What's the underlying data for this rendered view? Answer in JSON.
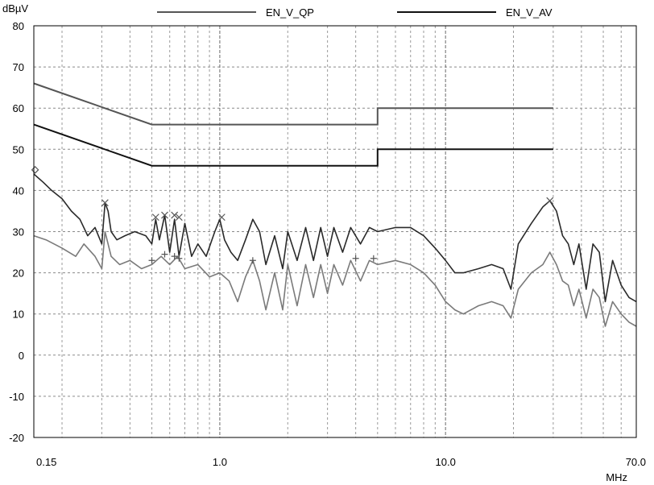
{
  "chart_data": {
    "type": "line",
    "ylabel": "dBµV",
    "xlabel": "MHz",
    "x_scale": "log",
    "xlim": [
      0.15,
      70.0
    ],
    "ylim": [
      -20,
      80
    ],
    "yticks": [
      80,
      70,
      60,
      50,
      40,
      30,
      20,
      10,
      0,
      -10,
      -20
    ],
    "ytick_labels": [
      "80",
      "70",
      "60",
      "50",
      "40",
      "30",
      "20",
      "10",
      "0",
      "-10",
      "-20"
    ],
    "xtick_values": [
      0.15,
      1.0,
      10.0,
      70.0
    ],
    "xtick_labels": [
      "0.15",
      "1.0",
      "10.0",
      "70.0"
    ],
    "grid": true,
    "legend": [
      {
        "name": "EN_V_QP",
        "color": "#555555"
      },
      {
        "name": "EN_V_AV",
        "color": "#111111"
      }
    ],
    "limit_lines": [
      {
        "name": "EN_V_QP",
        "color": "#555555",
        "points": [
          [
            0.15,
            66
          ],
          [
            0.5,
            56
          ],
          [
            5.0,
            56
          ],
          [
            5.0,
            60
          ],
          [
            30.0,
            60
          ]
        ]
      },
      {
        "name": "EN_V_AV",
        "color": "#111111",
        "points": [
          [
            0.15,
            56
          ],
          [
            0.5,
            46
          ],
          [
            5.0,
            46
          ],
          [
            5.0,
            50
          ],
          [
            30.0,
            50
          ]
        ]
      }
    ],
    "traces": [
      {
        "color": "#2a2a2a",
        "points": [
          [
            0.15,
            44
          ],
          [
            0.165,
            42
          ],
          [
            0.18,
            40
          ],
          [
            0.2,
            38
          ],
          [
            0.22,
            35
          ],
          [
            0.24,
            33
          ],
          [
            0.26,
            29
          ],
          [
            0.28,
            31
          ],
          [
            0.3,
            27
          ],
          [
            0.31,
            37
          ],
          [
            0.32,
            35
          ],
          [
            0.33,
            30
          ],
          [
            0.35,
            28
          ],
          [
            0.38,
            29
          ],
          [
            0.42,
            30
          ],
          [
            0.47,
            29
          ],
          [
            0.5,
            27
          ],
          [
            0.52,
            33
          ],
          [
            0.54,
            28
          ],
          [
            0.57,
            34
          ],
          [
            0.6,
            25
          ],
          [
            0.63,
            33
          ],
          [
            0.66,
            24
          ],
          [
            0.7,
            32
          ],
          [
            0.75,
            24
          ],
          [
            0.8,
            27
          ],
          [
            0.87,
            24
          ],
          [
            0.95,
            30
          ],
          [
            1.0,
            33
          ],
          [
            1.05,
            28
          ],
          [
            1.12,
            25
          ],
          [
            1.2,
            23
          ],
          [
            1.3,
            28
          ],
          [
            1.4,
            33
          ],
          [
            1.5,
            30
          ],
          [
            1.6,
            22
          ],
          [
            1.75,
            29
          ],
          [
            1.9,
            21
          ],
          [
            2.0,
            30
          ],
          [
            2.2,
            23
          ],
          [
            2.4,
            31
          ],
          [
            2.6,
            23
          ],
          [
            2.8,
            31
          ],
          [
            3.0,
            24
          ],
          [
            3.2,
            31
          ],
          [
            3.5,
            25
          ],
          [
            3.8,
            31
          ],
          [
            4.2,
            27
          ],
          [
            4.6,
            31
          ],
          [
            5.0,
            30
          ],
          [
            6.0,
            31
          ],
          [
            7.0,
            31
          ],
          [
            8.0,
            29
          ],
          [
            9.0,
            26
          ],
          [
            10.0,
            23
          ],
          [
            11.0,
            20
          ],
          [
            12.0,
            20
          ],
          [
            14.0,
            21
          ],
          [
            16.0,
            22
          ],
          [
            18.0,
            21
          ],
          [
            19.5,
            16
          ],
          [
            21.0,
            27
          ],
          [
            24.0,
            32
          ],
          [
            27.0,
            36
          ],
          [
            29.0,
            37.5
          ],
          [
            31.0,
            35
          ],
          [
            33.0,
            29
          ],
          [
            35.0,
            27
          ],
          [
            37.0,
            22
          ],
          [
            39.0,
            27
          ],
          [
            42.0,
            16
          ],
          [
            45.0,
            27
          ],
          [
            48.0,
            25
          ],
          [
            51.0,
            13
          ],
          [
            55.0,
            23
          ],
          [
            60.0,
            17
          ],
          [
            65.0,
            14
          ],
          [
            70.0,
            13
          ]
        ]
      },
      {
        "color": "#7a7a7a",
        "points": [
          [
            0.15,
            29
          ],
          [
            0.17,
            28
          ],
          [
            0.2,
            26
          ],
          [
            0.23,
            24
          ],
          [
            0.25,
            27
          ],
          [
            0.28,
            24
          ],
          [
            0.3,
            21
          ],
          [
            0.31,
            30
          ],
          [
            0.33,
            24
          ],
          [
            0.36,
            22
          ],
          [
            0.4,
            23
          ],
          [
            0.45,
            21
          ],
          [
            0.5,
            22
          ],
          [
            0.55,
            24
          ],
          [
            0.6,
            22
          ],
          [
            0.65,
            24
          ],
          [
            0.7,
            21
          ],
          [
            0.8,
            22
          ],
          [
            0.9,
            19
          ],
          [
            1.0,
            20
          ],
          [
            1.1,
            18
          ],
          [
            1.2,
            13
          ],
          [
            1.3,
            19
          ],
          [
            1.4,
            23
          ],
          [
            1.5,
            18
          ],
          [
            1.6,
            11
          ],
          [
            1.75,
            20
          ],
          [
            1.9,
            11
          ],
          [
            2.0,
            22
          ],
          [
            2.2,
            12
          ],
          [
            2.4,
            22
          ],
          [
            2.6,
            14
          ],
          [
            2.8,
            22
          ],
          [
            3.0,
            15
          ],
          [
            3.2,
            22
          ],
          [
            3.5,
            17
          ],
          [
            3.8,
            23
          ],
          [
            4.2,
            18
          ],
          [
            4.6,
            23
          ],
          [
            5.0,
            22
          ],
          [
            6.0,
            23
          ],
          [
            7.0,
            22
          ],
          [
            8.0,
            20
          ],
          [
            9.0,
            17
          ],
          [
            10.0,
            13
          ],
          [
            11.0,
            11
          ],
          [
            12.0,
            10
          ],
          [
            14.0,
            12
          ],
          [
            16.0,
            13
          ],
          [
            18.0,
            12
          ],
          [
            19.5,
            9
          ],
          [
            21.0,
            16
          ],
          [
            24.0,
            20
          ],
          [
            27.0,
            22
          ],
          [
            29.0,
            25
          ],
          [
            31.0,
            22
          ],
          [
            33.0,
            18
          ],
          [
            35.0,
            17
          ],
          [
            37.0,
            12
          ],
          [
            39.0,
            16
          ],
          [
            42.0,
            9
          ],
          [
            45.0,
            16
          ],
          [
            48.0,
            14
          ],
          [
            51.0,
            7
          ],
          [
            55.0,
            13
          ],
          [
            60.0,
            10
          ],
          [
            65.0,
            8
          ],
          [
            70.0,
            7
          ]
        ]
      }
    ],
    "markers": [
      {
        "symbol": "diamond",
        "x": 0.152,
        "y": 45
      },
      {
        "symbol": "x",
        "x": 0.31,
        "y": 37
      },
      {
        "symbol": "x",
        "x": 0.52,
        "y": 33.5
      },
      {
        "symbol": "x",
        "x": 0.57,
        "y": 34
      },
      {
        "symbol": "x",
        "x": 0.63,
        "y": 34
      },
      {
        "symbol": "x",
        "x": 0.66,
        "y": 33.5
      },
      {
        "symbol": "x",
        "x": 1.02,
        "y": 33.5
      },
      {
        "symbol": "x",
        "x": 29.0,
        "y": 37.5
      },
      {
        "symbol": "plus",
        "x": 0.5,
        "y": 23
      },
      {
        "symbol": "plus",
        "x": 0.57,
        "y": 24.5
      },
      {
        "symbol": "plus",
        "x": 0.63,
        "y": 24
      },
      {
        "symbol": "plus",
        "x": 0.66,
        "y": 23.5
      },
      {
        "symbol": "plus",
        "x": 1.4,
        "y": 23
      },
      {
        "symbol": "plus",
        "x": 4.0,
        "y": 23.5
      },
      {
        "symbol": "plus",
        "x": 4.8,
        "y": 23.5
      }
    ]
  }
}
